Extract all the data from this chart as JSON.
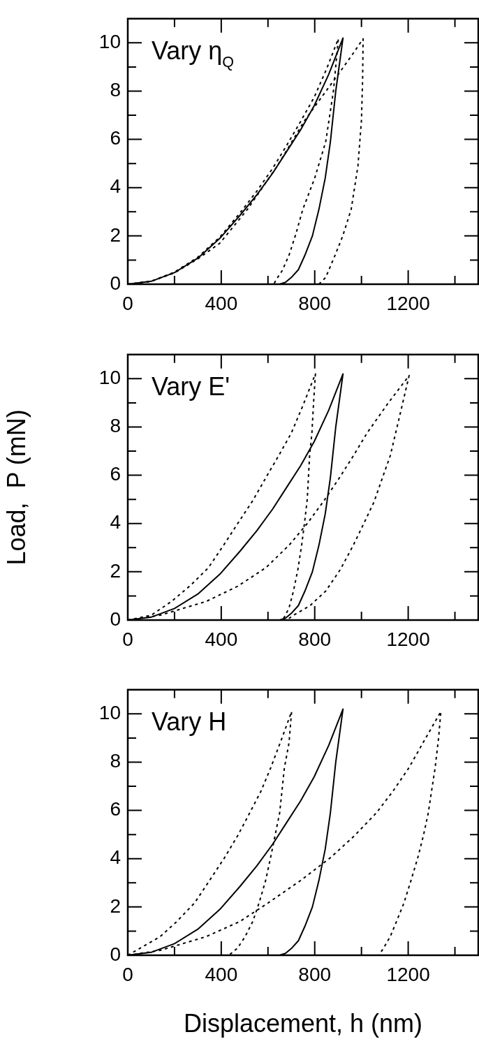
{
  "chart_data": [
    {
      "type": "line",
      "annotations": [
        "Vary η$_{Q}$"
      ],
      "xlim": [
        0,
        1500
      ],
      "ylim": [
        0,
        11
      ],
      "xticks": [
        0,
        {
          "value": 200,
          "label": null
        },
        400,
        {
          "value": 600,
          "label": null
        },
        800,
        {
          "value": 1000,
          "label": null
        },
        1200,
        {
          "value": 1400,
          "label": null
        }
      ],
      "yticks": [
        0,
        {
          "value": 1,
          "label": null
        },
        2,
        {
          "value": 3,
          "label": null
        },
        4,
        {
          "value": 5,
          "label": null
        },
        6,
        {
          "value": 7,
          "label": null
        },
        8,
        {
          "value": 9,
          "label": null
        },
        10
      ],
      "grid": false,
      "legend": false,
      "series": [
        {
          "color": "#000000",
          "line_style": "solid",
          "x": [
            0,
            100,
            200,
            300,
            394,
            480,
            552,
            620,
            680,
            740,
            798,
            860,
            921,
            890,
            867,
            845,
            818,
            790,
            758,
            730,
            700,
            675,
            650
          ],
          "values": [
            0,
            0.12,
            0.48,
            1.08,
            1.9,
            2.85,
            3.7,
            4.6,
            5.5,
            6.4,
            7.4,
            8.7,
            10.2,
            8.0,
            5.9,
            4.4,
            3.1,
            2.0,
            1.2,
            0.6,
            0.28,
            0.08,
            0
          ]
        },
        {
          "color": "#000000",
          "line_style": "dashed",
          "x": [
            0,
            100,
            200,
            300,
            394,
            480,
            552,
            620,
            680,
            740,
            798,
            850,
            901,
            880,
            847,
            800,
            749,
            720,
            690,
            660,
            635,
            625
          ],
          "values": [
            0,
            0.12,
            0.5,
            1.12,
            1.95,
            2.95,
            3.85,
            4.8,
            5.75,
            6.75,
            7.75,
            8.9,
            10.17,
            8.0,
            5.9,
            4.4,
            3.1,
            2.1,
            1.2,
            0.55,
            0.19,
            0
          ]
        },
        {
          "color": "#000000",
          "line_style": "dashed",
          "x": [
            0,
            100,
            200,
            300,
            394,
            512,
            640,
            758,
            901,
            960,
            1007,
            1005,
            1000,
            985,
            956,
            920,
            887,
            847,
            818
          ],
          "values": [
            0,
            0.12,
            0.47,
            1.05,
            1.7,
            3.1,
            4.9,
            6.8,
            8.7,
            9.5,
            10.17,
            8.5,
            6.8,
            4.9,
            3.1,
            2.0,
            1.2,
            0.28,
            0
          ]
        }
      ]
    },
    {
      "type": "line",
      "ylabel": "Load,  P (mN)",
      "annotations": [
        "Vary E'"
      ],
      "xlim": [
        0,
        1500
      ],
      "ylim": [
        0,
        11
      ],
      "xticks": [
        0,
        {
          "value": 200,
          "label": null
        },
        400,
        {
          "value": 600,
          "label": null
        },
        800,
        {
          "value": 1000,
          "label": null
        },
        1200,
        {
          "value": 1400,
          "label": null
        }
      ],
      "yticks": [
        0,
        {
          "value": 1,
          "label": null
        },
        2,
        {
          "value": 3,
          "label": null
        },
        4,
        {
          "value": 5,
          "label": null
        },
        6,
        {
          "value": 7,
          "label": null
        },
        8,
        {
          "value": 9,
          "label": null
        },
        10
      ],
      "grid": false,
      "legend": false,
      "series": [
        {
          "color": "#000000",
          "line_style": "solid",
          "x": [
            0,
            100,
            200,
            300,
            394,
            480,
            552,
            620,
            680,
            740,
            798,
            860,
            921,
            890,
            867,
            845,
            818,
            790,
            758,
            730,
            700,
            675,
            650
          ],
          "values": [
            0,
            0.12,
            0.48,
            1.08,
            1.9,
            2.85,
            3.7,
            4.6,
            5.5,
            6.4,
            7.4,
            8.7,
            10.2,
            8.0,
            5.9,
            4.4,
            3.1,
            2.0,
            1.2,
            0.6,
            0.28,
            0.08,
            0
          ]
        },
        {
          "color": "#000000",
          "line_style": "dashed",
          "x": [
            0,
            100,
            187,
            270,
            345,
            410,
            473,
            535,
            591,
            645,
            700,
            750,
            803,
            795,
            788,
            778,
            768,
            756,
            744,
            728,
            709,
            690,
            670,
            660
          ],
          "values": [
            0,
            0.2,
            0.77,
            1.45,
            2.17,
            3.1,
            4.04,
            4.95,
            5.9,
            6.8,
            7.75,
            8.9,
            10.2,
            9.0,
            7.75,
            6.8,
            5.0,
            4.0,
            3.1,
            2.1,
            1.2,
            0.5,
            0.12,
            0
          ]
        },
        {
          "color": "#000000",
          "line_style": "dashed",
          "x": [
            0,
            138,
            335,
            470,
            591,
            690,
            768,
            840,
            906,
            965,
            1024,
            1115,
            1204,
            1167,
            1123,
            1090,
            1054,
            1010,
            965,
            910,
            847,
            780,
            709,
            680
          ],
          "values": [
            0,
            0.2,
            0.77,
            1.4,
            2.17,
            3.1,
            4.0,
            4.95,
            5.9,
            6.8,
            7.75,
            9.0,
            10.13,
            8.6,
            6.8,
            5.9,
            4.9,
            4.0,
            3.1,
            2.1,
            1.2,
            0.6,
            0.2,
            0
          ]
        }
      ]
    },
    {
      "type": "line",
      "xlabel": "Displacement, h (nm)",
      "annotations": [
        "Vary H"
      ],
      "xlim": [
        0,
        1500
      ],
      "ylim": [
        0,
        11
      ],
      "xticks": [
        0,
        {
          "value": 200,
          "label": null
        },
        400,
        {
          "value": 600,
          "label": null
        },
        800,
        {
          "value": 1000,
          "label": null
        },
        1200,
        {
          "value": 1400,
          "label": null
        }
      ],
      "yticks": [
        0,
        {
          "value": 1,
          "label": null
        },
        2,
        {
          "value": 3,
          "label": null
        },
        4,
        {
          "value": 5,
          "label": null
        },
        6,
        {
          "value": 7,
          "label": null
        },
        8,
        {
          "value": 9,
          "label": null
        },
        10
      ],
      "grid": false,
      "legend": false,
      "series": [
        {
          "color": "#000000",
          "line_style": "solid",
          "x": [
            0,
            100,
            200,
            300,
            394,
            480,
            552,
            620,
            680,
            740,
            798,
            860,
            921,
            890,
            867,
            845,
            818,
            790,
            758,
            730,
            700,
            675,
            650
          ],
          "values": [
            0,
            0.12,
            0.48,
            1.08,
            1.9,
            2.85,
            3.7,
            4.6,
            5.5,
            6.4,
            7.4,
            8.7,
            10.2,
            8.0,
            5.9,
            4.4,
            3.1,
            2.0,
            1.2,
            0.6,
            0.28,
            0.08,
            0
          ]
        },
        {
          "color": "#000000",
          "line_style": "dashed",
          "x": [
            0,
            138,
            210,
            286,
            350,
            414,
            470,
            522,
            570,
            611,
            660,
            701,
            690,
            670,
            650,
            630,
            611,
            590,
            562,
            535,
            502,
            470,
            433
          ],
          "values": [
            0,
            0.77,
            1.4,
            2.17,
            3.1,
            4.04,
            4.95,
            5.9,
            6.8,
            7.75,
            9.0,
            10.1,
            8.8,
            7.75,
            5.9,
            4.95,
            4.04,
            3.1,
            2.17,
            1.4,
            0.77,
            0.3,
            0
          ]
        },
        {
          "color": "#000000",
          "line_style": "dashed",
          "x": [
            0,
            138,
            335,
            480,
            601,
            740,
            867,
            970,
            1064,
            1135,
            1202,
            1275,
            1340,
            1330,
            1315,
            1300,
            1286,
            1265,
            1241,
            1212,
            1182,
            1150,
            1123,
            1095,
            1074
          ],
          "values": [
            0,
            0.2,
            0.77,
            1.4,
            2.17,
            3.1,
            4.04,
            4.95,
            5.9,
            6.8,
            7.75,
            9.0,
            10.1,
            9.0,
            7.75,
            6.8,
            5.9,
            4.95,
            4.04,
            3.1,
            2.17,
            1.4,
            0.77,
            0.3,
            0
          ]
        }
      ]
    }
  ]
}
